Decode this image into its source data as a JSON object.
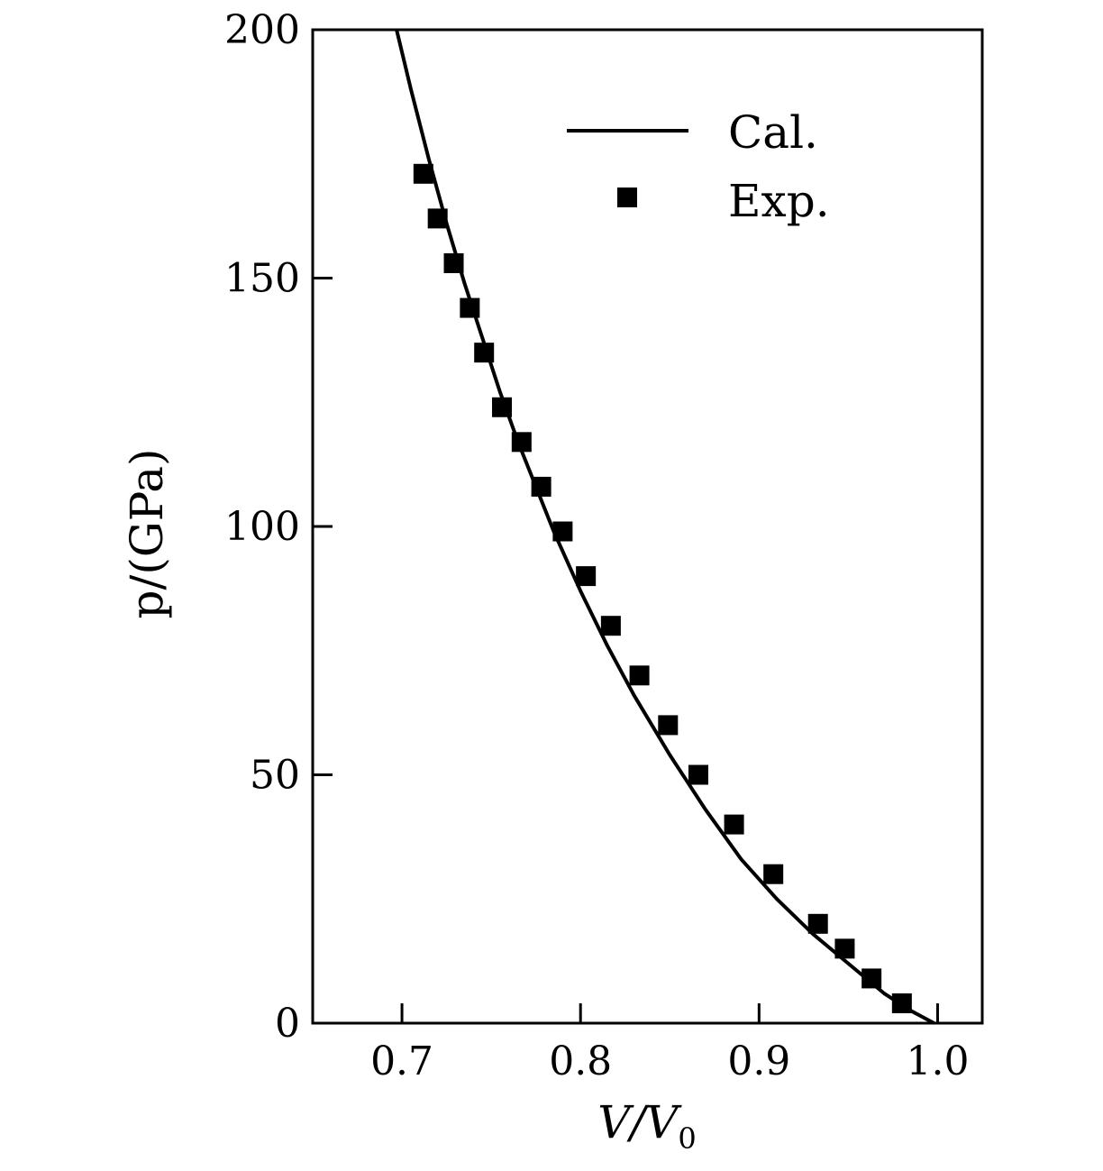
{
  "chart_data": {
    "type": "line",
    "xlabel": {
      "main": "V/V",
      "subscript": "0"
    },
    "ylabel": "p/(GPa)",
    "xlim": [
      0.65,
      1.025
    ],
    "ylim": [
      0,
      200
    ],
    "x_ticks": [
      {
        "value": 0.7,
        "label": "0.7"
      },
      {
        "value": 0.8,
        "label": "0.8"
      },
      {
        "value": 0.9,
        "label": "0.9"
      },
      {
        "value": 1.0,
        "label": "1.0"
      }
    ],
    "y_ticks": [
      {
        "value": 0,
        "label": "0"
      },
      {
        "value": 50,
        "label": "50"
      },
      {
        "value": 100,
        "label": "100"
      },
      {
        "value": 150,
        "label": "150"
      },
      {
        "value": 200,
        "label": "200"
      }
    ],
    "legend_position": "top-right",
    "series": [
      {
        "name": "Cal.",
        "style": "line",
        "color": "#000000",
        "x": [
          0.697,
          0.705,
          0.715,
          0.725,
          0.735,
          0.745,
          0.755,
          0.765,
          0.775,
          0.785,
          0.8,
          0.815,
          0.83,
          0.85,
          0.87,
          0.89,
          0.91,
          0.93,
          0.95,
          0.97,
          0.985,
          0.998
        ],
        "y": [
          200,
          188,
          174,
          161,
          149,
          138,
          127,
          117,
          108,
          99,
          87,
          76,
          66,
          54,
          43,
          33,
          25,
          18,
          12,
          6,
          2.5,
          0
        ]
      },
      {
        "name": "Exp.",
        "style": "marker",
        "marker": "square",
        "color": "#000000",
        "x": [
          0.712,
          0.72,
          0.729,
          0.738,
          0.746,
          0.756,
          0.767,
          0.778,
          0.79,
          0.803,
          0.817,
          0.833,
          0.849,
          0.866,
          0.886,
          0.908,
          0.933,
          0.948,
          0.963,
          0.98
        ],
        "y": [
          171,
          162,
          153,
          144,
          135,
          124,
          117,
          108,
          99,
          90,
          80,
          70,
          60,
          50,
          40,
          30,
          20,
          15,
          9,
          4
        ]
      }
    ]
  }
}
